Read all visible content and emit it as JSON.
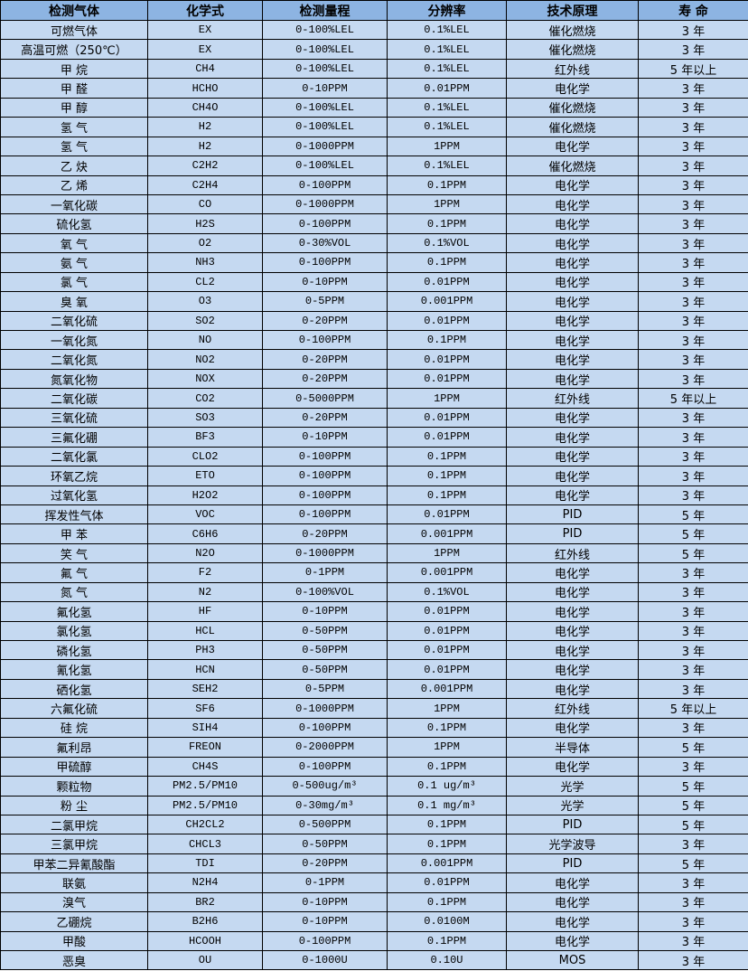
{
  "colors": {
    "header_bg": "#8db4e2",
    "row_bg": "#c5d9f1",
    "border": "#000000"
  },
  "table": {
    "headers": [
      "检测气体",
      "化学式",
      "检测量程",
      "分辨率",
      "技术原理",
      "寿 命"
    ],
    "rows": [
      [
        "可燃气体",
        "EX",
        "0-100%LEL",
        "0.1%LEL",
        "催化燃烧",
        "3 年"
      ],
      [
        "高温可燃（250℃）",
        "EX",
        "0-100%LEL",
        "0.1%LEL",
        "催化燃烧",
        "3 年"
      ],
      [
        "甲 烷",
        "CH4",
        "0-100%LEL",
        "0.1%LEL",
        "红外线",
        "5 年以上"
      ],
      [
        "甲 醛",
        "HCHO",
        "0-10PPM",
        "0.01PPM",
        "电化学",
        "3 年"
      ],
      [
        "甲 醇",
        "CH4O",
        "0-100%LEL",
        "0.1%LEL",
        "催化燃烧",
        "3 年"
      ],
      [
        "氢 气",
        "H2",
        "0-100%LEL",
        "0.1%LEL",
        "催化燃烧",
        "3 年"
      ],
      [
        "氢 气",
        "H2",
        "0-1000PPM",
        "1PPM",
        "电化学",
        "3 年"
      ],
      [
        "乙 炔",
        "C2H2",
        "0-100%LEL",
        "0.1%LEL",
        "催化燃烧",
        "3 年"
      ],
      [
        "乙 烯",
        "C2H4",
        "0-100PPM",
        "0.1PPM",
        "电化学",
        "3 年"
      ],
      [
        "一氧化碳",
        "CO",
        "0-1000PPM",
        "1PPM",
        "电化学",
        "3 年"
      ],
      [
        "硫化氢",
        "H2S",
        "0-100PPM",
        "0.1PPM",
        "电化学",
        "3 年"
      ],
      [
        "氧 气",
        "O2",
        "0-30%VOL",
        "0.1%VOL",
        "电化学",
        "3 年"
      ],
      [
        "氨 气",
        "NH3",
        "0-100PPM",
        "0.1PPM",
        "电化学",
        "3 年"
      ],
      [
        "氯 气",
        "CL2",
        "0-10PPM",
        "0.01PPM",
        "电化学",
        "3 年"
      ],
      [
        "臭 氧",
        "O3",
        "0-5PPM",
        "0.001PPM",
        "电化学",
        "3 年"
      ],
      [
        "二氧化硫",
        "SO2",
        "0-20PPM",
        "0.01PPM",
        "电化学",
        "3 年"
      ],
      [
        "一氧化氮",
        "NO",
        "0-100PPM",
        "0.1PPM",
        "电化学",
        "3 年"
      ],
      [
        "二氧化氮",
        "NO2",
        "0-20PPM",
        "0.01PPM",
        "电化学",
        "3 年"
      ],
      [
        "氮氧化物",
        "NOX",
        "0-20PPM",
        "0.01PPM",
        "电化学",
        "3 年"
      ],
      [
        "二氧化碳",
        "CO2",
        "0-5000PPM",
        "1PPM",
        "红外线",
        "5 年以上"
      ],
      [
        "三氧化硫",
        "SO3",
        "0-20PPM",
        "0.01PPM",
        "电化学",
        "3 年"
      ],
      [
        "三氟化硼",
        "BF3",
        "0-10PPM",
        "0.01PPM",
        "电化学",
        "3 年"
      ],
      [
        "二氧化氯",
        "CLO2",
        "0-100PPM",
        "0.1PPM",
        "电化学",
        "3 年"
      ],
      [
        "环氧乙烷",
        "ETO",
        "0-100PPM",
        "0.1PPM",
        "电化学",
        "3 年"
      ],
      [
        "过氧化氢",
        "H2O2",
        "0-100PPM",
        "0.1PPM",
        "电化学",
        "3 年"
      ],
      [
        "挥发性气体",
        "VOC",
        "0-100PPM",
        "0.01PPM",
        "PID",
        "5 年"
      ],
      [
        "甲 苯",
        "C6H6",
        "0-20PPM",
        "0.001PPM",
        "PID",
        "5 年"
      ],
      [
        "笑 气",
        "N2O",
        "0-1000PPM",
        "1PPM",
        "红外线",
        "5 年"
      ],
      [
        "氟 气",
        "F2",
        "0-1PPM",
        "0.001PPM",
        "电化学",
        "3 年"
      ],
      [
        "氮 气",
        "N2",
        "0-100%VOL",
        "0.1%VOL",
        "电化学",
        "3 年"
      ],
      [
        "氟化氢",
        "HF",
        "0-10PPM",
        "0.01PPM",
        "电化学",
        "3 年"
      ],
      [
        "氯化氢",
        "HCL",
        "0-50PPM",
        "0.01PPM",
        "电化学",
        "3 年"
      ],
      [
        "磷化氢",
        "PH3",
        "0-50PPM",
        "0.01PPM",
        "电化学",
        "3 年"
      ],
      [
        "氰化氢",
        "HCN",
        "0-50PPM",
        "0.01PPM",
        "电化学",
        "3 年"
      ],
      [
        "硒化氢",
        "SEH2",
        "0-5PPM",
        "0.001PPM",
        "电化学",
        "3 年"
      ],
      [
        "六氟化硫",
        "SF6",
        "0-1000PPM",
        "1PPM",
        "红外线",
        "5 年以上"
      ],
      [
        "硅 烷",
        "SIH4",
        "0-100PPM",
        "0.1PPM",
        "电化学",
        "3 年"
      ],
      [
        "氟利昂",
        "FREON",
        "0-2000PPM",
        "1PPM",
        "半导体",
        "5 年"
      ],
      [
        "甲硫醇",
        "CH4S",
        "0-100PPM",
        "0.1PPM",
        "电化学",
        "3 年"
      ],
      [
        "颗粒物",
        "PM2.5/PM10",
        "0-500ug/m³",
        "0.1 ug/m³",
        "光学",
        "5 年"
      ],
      [
        "粉 尘",
        "PM2.5/PM10",
        "0-30mg/m³",
        "0.1 mg/m³",
        "光学",
        "5 年"
      ],
      [
        "二氯甲烷",
        "CH2CL2",
        "0-500PPM",
        "0.1PPM",
        "PID",
        "5 年"
      ],
      [
        "三氯甲烷",
        "CHCL3",
        "0-50PPM",
        "0.1PPM",
        "光学波导",
        "3 年"
      ],
      [
        "甲苯二异氰酸酯",
        "TDI",
        "0-20PPM",
        "0.001PPM",
        "PID",
        "5 年"
      ],
      [
        "联氨",
        "N2H4",
        "0-1PPM",
        "0.01PPM",
        "电化学",
        "3 年"
      ],
      [
        "溴气",
        "BR2",
        "0-10PPM",
        "0.1PPM",
        "电化学",
        "3 年"
      ],
      [
        "乙硼烷",
        "B2H6",
        "0-10PPM",
        "0.0100M",
        "电化学",
        "3 年"
      ],
      [
        "甲酸",
        "HCOOH",
        "0-100PPM",
        "0.1PPM",
        "电化学",
        "3 年"
      ],
      [
        "恶臭",
        "OU",
        "0-1000U",
        "0.10U",
        "MOS",
        "3 年"
      ]
    ]
  }
}
